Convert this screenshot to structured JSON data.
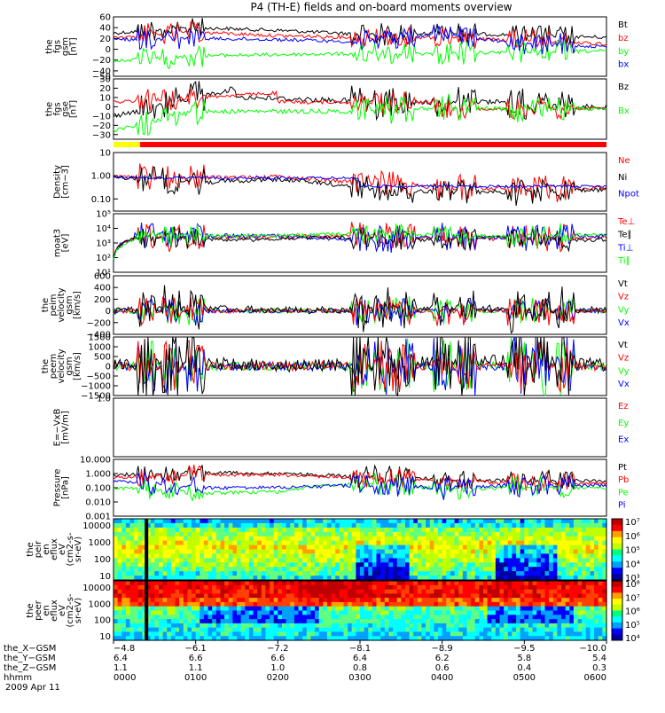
{
  "title": "P4 (TH-E) fields and on-board moments overview",
  "date": "2009 Apr 11",
  "colors": {
    "black": "#000000",
    "red": "#ff0000",
    "green": "#00ff00",
    "blue": "#0000ff",
    "yellow": "#ffff00"
  },
  "bar_legend": "yellow = fast survey, red = slow survey",
  "panels": [
    {
      "id": "fgs_gsm",
      "ylabel": [
        "the",
        "fgs",
        "gsm",
        "[nT]"
      ],
      "ylim": [
        -50,
        60
      ],
      "yticks": [
        {
          "v": 60,
          "l": "60"
        },
        {
          "v": 40,
          "l": "40"
        },
        {
          "v": 20,
          "l": "20"
        },
        {
          "v": 0,
          "l": "0"
        },
        {
          "v": -20,
          "l": "−20"
        },
        {
          "v": -40,
          "l": "−40"
        },
        {
          "v": -50,
          "l": "−50"
        }
      ],
      "legend": [
        {
          "label": "Bt",
          "color": "black"
        },
        {
          "label": "bz",
          "color": "red"
        },
        {
          "label": "by",
          "color": "green"
        },
        {
          "label": "bx",
          "color": "blue"
        }
      ]
    },
    {
      "id": "fgs_gse",
      "ylabel": [
        "the",
        "fgs",
        "gse",
        "[nT]"
      ],
      "ylim": [
        -35,
        30
      ],
      "yticks": [
        {
          "v": 30,
          "l": "30"
        },
        {
          "v": 20,
          "l": "20"
        },
        {
          "v": 10,
          "l": "10"
        },
        {
          "v": 0,
          "l": "0"
        },
        {
          "v": -10,
          "l": "−10"
        },
        {
          "v": -20,
          "l": "−20"
        },
        {
          "v": -30,
          "l": "−30"
        }
      ],
      "legend": [
        {
          "label": "Bz",
          "color": "black"
        },
        {
          "label": "Bx",
          "color": "green"
        }
      ]
    },
    {
      "id": "density",
      "ylabel": [
        "Density",
        "[cm−3]"
      ],
      "ylim": [
        0.03,
        10
      ],
      "log": true,
      "yticks": [
        {
          "v": 10,
          "l": "10"
        },
        {
          "v": 1,
          "l": "1.00"
        },
        {
          "v": 0.1,
          "l": "0.10"
        }
      ],
      "legend": [
        {
          "label": "Ne",
          "color": "red"
        },
        {
          "label": "Ni",
          "color": "black"
        },
        {
          "label": "Npot",
          "color": "blue"
        }
      ]
    },
    {
      "id": "temperature",
      "ylabel": [
        "moat3",
        "[eV]"
      ],
      "ylim": [
        10,
        100000
      ],
      "log": true,
      "yticks": [
        {
          "v": 100000,
          "l": "10⁵"
        },
        {
          "v": 10000,
          "l": "10⁴"
        },
        {
          "v": 1000,
          "l": "10³"
        },
        {
          "v": 100,
          "l": "10²"
        },
        {
          "v": 10,
          "l": "10¹"
        }
      ],
      "legend": [
        {
          "label": "Te⊥",
          "color": "red"
        },
        {
          "label": "Te∥",
          "color": "black"
        },
        {
          "label": "Ti⊥",
          "color": "blue"
        },
        {
          "label": "Ti∥",
          "color": "green"
        }
      ]
    },
    {
      "id": "peim_velocity",
      "ylabel": [
        "the",
        "peim",
        "velocity",
        "gsm",
        "[km/s]"
      ],
      "ylim": [
        -400,
        600
      ],
      "yticks": [
        {
          "v": 600,
          "l": "600"
        },
        {
          "v": 400,
          "l": "400"
        },
        {
          "v": 200,
          "l": "200"
        },
        {
          "v": 0,
          "l": "0"
        },
        {
          "v": -200,
          "l": "−200"
        },
        {
          "v": -400,
          "l": "−400"
        }
      ],
      "legend": [
        {
          "label": "Vt",
          "color": "black"
        },
        {
          "label": "Vz",
          "color": "red"
        },
        {
          "label": "Vy",
          "color": "green"
        },
        {
          "label": "Vx",
          "color": "blue"
        }
      ]
    },
    {
      "id": "peem_velocity",
      "ylabel": [
        "the",
        "peem",
        "velocity",
        "gsm",
        "[km/s]"
      ],
      "ylim": [
        -1500,
        1500
      ],
      "yticks": [
        {
          "v": 1500,
          "l": "1500"
        },
        {
          "v": 1000,
          "l": "1000"
        },
        {
          "v": 500,
          "l": "500"
        },
        {
          "v": 0,
          "l": "0"
        },
        {
          "v": -500,
          "l": "−500"
        },
        {
          "v": -1000,
          "l": "−1000"
        },
        {
          "v": -1500,
          "l": "−1500"
        }
      ],
      "legend": [
        {
          "label": "Vt",
          "color": "black"
        },
        {
          "label": "Vz",
          "color": "red"
        },
        {
          "label": "Vy",
          "color": "green"
        },
        {
          "label": "Vx",
          "color": "blue"
        }
      ]
    },
    {
      "id": "efield",
      "ylabel": [
        "E=−VxB",
        "[mV/m]"
      ],
      "ylim": [
        -1,
        1
      ],
      "yticks": [
        {
          "v": 1,
          "l": "1.0"
        }
      ],
      "legend": [
        {
          "label": "Ez",
          "color": "red"
        },
        {
          "label": "Ey",
          "color": "green"
        },
        {
          "label": "Ex",
          "color": "blue"
        }
      ]
    },
    {
      "id": "pressure",
      "ylabel": [
        "Pressure",
        "[nPa]"
      ],
      "ylim": [
        0.001,
        10
      ],
      "log": true,
      "yticks": [
        {
          "v": 10,
          "l": "10.000"
        },
        {
          "v": 1,
          "l": "1.000"
        },
        {
          "v": 0.1,
          "l": "0.100"
        },
        {
          "v": 0.01,
          "l": "0.010"
        },
        {
          "v": 0.001,
          "l": "0.001"
        }
      ],
      "legend": [
        {
          "label": "Pt",
          "color": "black"
        },
        {
          "label": "Pb",
          "color": "red"
        },
        {
          "label": "Pe",
          "color": "green"
        },
        {
          "label": "Pi",
          "color": "blue"
        }
      ]
    },
    {
      "id": "peir_spec",
      "ylabel": [
        "the",
        "peir",
        "en",
        "eflux",
        "eV",
        "(cm2-s-",
        "sr-eV)"
      ],
      "spec": true,
      "yticks": [
        {
          "l": "10000"
        },
        {
          "l": "1000"
        },
        {
          "l": "100"
        },
        {
          "l": "10"
        }
      ],
      "cbar": [
        "10⁷",
        "10⁶",
        "10⁵",
        "10⁴",
        "10³"
      ]
    },
    {
      "id": "peer_spec",
      "ylabel": [
        "the",
        "peer",
        "en",
        "eflux",
        "eV",
        "(cm2-s-",
        "sr-eV)"
      ],
      "spec": true,
      "yticks": [
        {
          "l": "10000"
        },
        {
          "l": "1000"
        },
        {
          "l": "100"
        },
        {
          "l": "10"
        }
      ],
      "cbar": [
        "10⁸",
        "10⁷",
        "10⁶",
        "10⁵",
        "10⁴"
      ]
    }
  ],
  "xaxis": {
    "rows": [
      {
        "label": "the_X−GSM",
        "values": [
          "−4.8",
          "−6.1",
          "−7.2",
          "−8.1",
          "−8.9",
          "−9.5",
          "−10.0"
        ]
      },
      {
        "label": "the_Y−GSM",
        "values": [
          "6.4",
          "6.6",
          "6.6",
          "6.4",
          "6.2",
          "5.8",
          "5.4"
        ]
      },
      {
        "label": "the_Z−GSM",
        "values": [
          "1.1",
          "1.1",
          "1.0",
          "0.8",
          "0.6",
          "0.4",
          "0.3"
        ]
      },
      {
        "label": "hhmm",
        "values": [
          "0000",
          "0100",
          "0200",
          "0300",
          "0400",
          "0500",
          "0600"
        ]
      }
    ]
  },
  "chart_data": {
    "type": "line",
    "title": "P4 (TH-E) fields and on-board moments overview",
    "x_hours": [
      0,
      1,
      2,
      3,
      4,
      5,
      6
    ],
    "xlabel": "hhmm",
    "series": [
      {
        "panel": "fgs_gsm",
        "name": "Bt",
        "values": [
          30,
          40,
          35,
          28,
          30,
          26,
          22
        ]
      },
      {
        "panel": "fgs_gsm",
        "name": "bz",
        "values": [
          22,
          32,
          25,
          22,
          22,
          15,
          10
        ]
      },
      {
        "panel": "fgs_gsm",
        "name": "by",
        "values": [
          -22,
          -12,
          -10,
          -8,
          -8,
          -5,
          -3
        ]
      },
      {
        "panel": "fgs_gsm",
        "name": "bx",
        "values": [
          18,
          20,
          18,
          14,
          28,
          10,
          5
        ]
      },
      {
        "panel": "density",
        "name": "Ne",
        "values": [
          1.0,
          0.8,
          0.9,
          0.5,
          0.3,
          0.3,
          0.3
        ]
      },
      {
        "panel": "density",
        "name": "Ni",
        "values": [
          0.9,
          0.5,
          0.7,
          0.3,
          0.2,
          0.2,
          0.25
        ]
      },
      {
        "panel": "temperature",
        "name": "Te⊥",
        "values": [
          3000,
          2500,
          2500,
          3000,
          2000,
          2000,
          2500
        ]
      },
      {
        "panel": "temperature",
        "name": "Ti⊥",
        "values": [
          5000,
          3000,
          3000,
          1500,
          2500,
          2500,
          3000
        ]
      },
      {
        "panel": "peim_velocity",
        "name": "Vt",
        "values": [
          20,
          150,
          40,
          60,
          200,
          80,
          50
        ]
      },
      {
        "panel": "peem_velocity",
        "name": "Vt",
        "values": [
          100,
          600,
          100,
          200,
          800,
          900,
          200
        ]
      },
      {
        "panel": "pressure",
        "name": "Pt",
        "values": [
          0.8,
          1.2,
          1.0,
          0.6,
          0.4,
          0.3,
          0.3
        ]
      },
      {
        "panel": "pressure",
        "name": "Pb",
        "values": [
          0.5,
          0.9,
          0.8,
          0.5,
          0.3,
          0.2,
          0.2
        ]
      },
      {
        "panel": "pressure",
        "name": "Pe",
        "values": [
          0.1,
          0.04,
          0.05,
          0.2,
          0.08,
          0.1,
          0.1
        ]
      },
      {
        "panel": "pressure",
        "name": "Pi",
        "values": [
          0.3,
          0.1,
          0.1,
          0.15,
          0.1,
          0.15,
          0.15
        ]
      }
    ]
  }
}
